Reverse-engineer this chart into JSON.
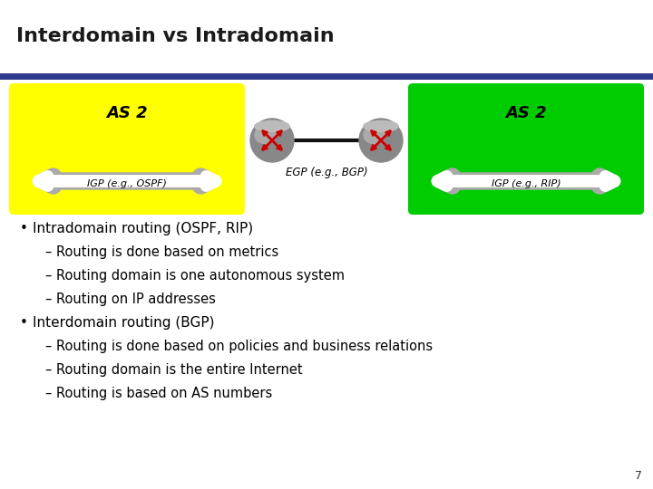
{
  "title": "Interdomain vs Intradomain",
  "title_fontsize": 16,
  "title_color": "#1a1a1a",
  "title_bar_color": "#2e3a8c",
  "bg_color": "#ffffff",
  "left_box_color": "#ffff00",
  "right_box_color": "#00cc00",
  "left_as_label": "AS 2",
  "right_as_label": "AS 2",
  "left_igp_label": "IGP (e.g., OSPF)",
  "right_igp_label": "IGP (e.g., RIP)",
  "egp_label": "EGP (e.g., BGP)",
  "bullet1": "Intradomain routing (OSPF, RIP)",
  "sub1_1": "Routing is done based on metrics",
  "sub1_2": "Routing domain is one autonomous system",
  "sub1_3": "Routing on IP addresses",
  "bullet2": "Interdomain routing (BGP)",
  "sub2_1": "Routing is done based on policies and business relations",
  "sub2_2": "Routing domain is the entire Internet",
  "sub2_3": "Routing is based on AS numbers",
  "page_num": "7",
  "text_fontsize": 11,
  "sub_fontsize": 10.5
}
